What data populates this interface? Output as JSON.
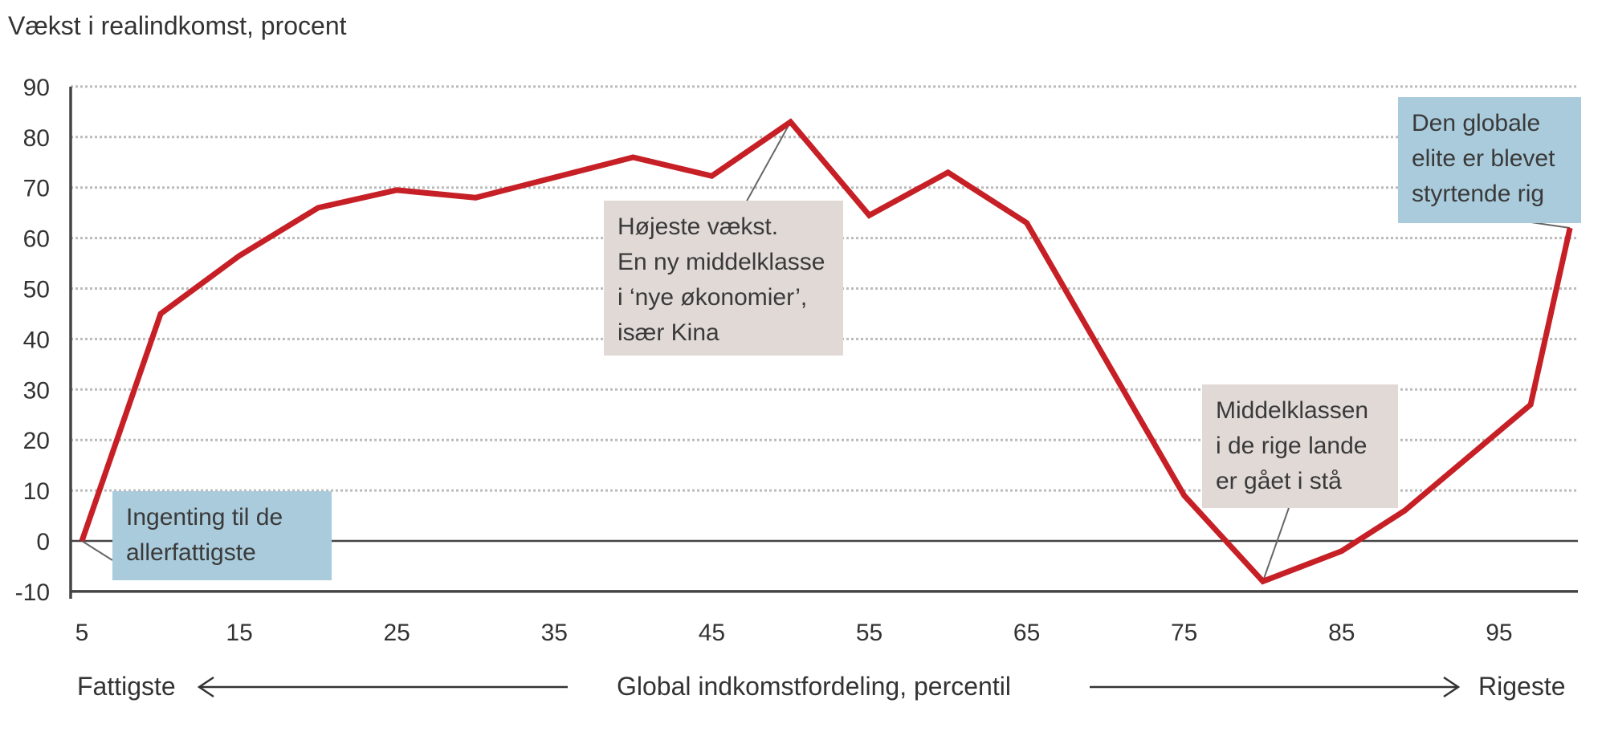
{
  "chart_data": {
    "type": "line",
    "title": "",
    "ylabel": "Vækst i realindkomst, procent",
    "xlabel": "Global indkomstfordeling, percentil",
    "x_left_label": "Fattigste",
    "x_right_label": "Rigeste",
    "xlim": [
      5,
      100
    ],
    "ylim": [
      -10,
      90
    ],
    "x_ticks": [
      "5",
      "15",
      "25",
      "35",
      "45",
      "55",
      "65",
      "75",
      "85",
      "95"
    ],
    "y_ticks": [
      "90",
      "80",
      "70",
      "60",
      "50",
      "40",
      "30",
      "20",
      "10",
      "0",
      "-10"
    ],
    "grid": "horizontal dotted",
    "line_color": "#c62026",
    "x": [
      5,
      10,
      15,
      20,
      25,
      30,
      35,
      40,
      45,
      50,
      55,
      60,
      65,
      70,
      75,
      80,
      85,
      89,
      97,
      99.5
    ],
    "values": [
      0,
      45,
      56.5,
      66,
      69.5,
      68,
      72,
      76,
      72.3,
      83,
      64.5,
      73,
      63,
      36,
      9,
      -8,
      -2,
      6,
      27,
      62
    ],
    "annotations": [
      {
        "lines": [
          "Ingenting til de",
          "allerfattigste"
        ],
        "color": "#a9cbdb",
        "x": 5,
        "y": 0
      },
      {
        "lines": [
          "Højeste vækst.",
          "En ny middelklasse",
          "i ‘nye økonomier’,",
          "især Kina"
        ],
        "color": "#e0d9d6",
        "x": 50,
        "y": 83
      },
      {
        "lines": [
          "Middelklassen",
          "i de rige lande",
          "er gået i stå"
        ],
        "color": "#e0d9d6",
        "x": 80,
        "y": -8
      },
      {
        "lines": [
          "Den globale",
          "elite er blevet",
          "styrtende rig"
        ],
        "color": "#a9cbdb",
        "x": 99.5,
        "y": 62
      }
    ]
  }
}
